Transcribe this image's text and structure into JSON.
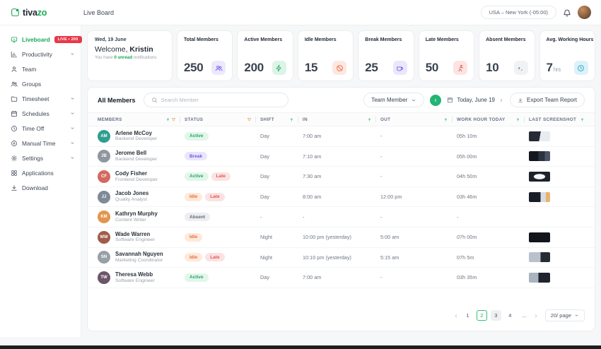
{
  "brand": {
    "name_primary": "tiva",
    "name_accent": "zo"
  },
  "header": {
    "title": "Live Board",
    "timezone": "USA – New York (-05:00)"
  },
  "sidebar": {
    "items": [
      {
        "label": "Liveboard",
        "icon": "monitor",
        "badge": "LIVE • 200",
        "state": "active"
      },
      {
        "label": "Productivity",
        "icon": "chart",
        "chevron": true
      },
      {
        "label": "Team",
        "icon": "user"
      },
      {
        "label": "Groups",
        "icon": "users"
      },
      {
        "label": "Timesheet",
        "icon": "folder",
        "chevron": true
      },
      {
        "label": "Schedules",
        "icon": "calendar",
        "chevron": true
      },
      {
        "label": "Time Off",
        "icon": "clock",
        "chevron": true
      },
      {
        "label": "Manual Time",
        "icon": "clock-plus",
        "chevron": true
      },
      {
        "label": "Settings",
        "icon": "gear",
        "chevron": true
      },
      {
        "label": "Applications",
        "icon": "apps"
      },
      {
        "label": "Download",
        "icon": "download"
      }
    ]
  },
  "welcome": {
    "date": "Wed, 19 June",
    "greeting_prefix": "Welcome,",
    "greeting_name": "Kristin",
    "note_before": "You have",
    "note_highlight": "0 unread",
    "note_after": "notifications"
  },
  "stats": [
    {
      "label": "Total Members",
      "value": "250",
      "icon": "users",
      "fg": "#7a5af8",
      "bg": "#ece9fd"
    },
    {
      "label": "Active Members",
      "value": "200",
      "icon": "zap",
      "fg": "#2bb673",
      "bg": "#def3e7"
    },
    {
      "label": "Idle Members",
      "value": "15",
      "icon": "ban",
      "fg": "#f26a4b",
      "bg": "#fde8e1"
    },
    {
      "label": "Break Members",
      "value": "25",
      "icon": "coffee",
      "fg": "#6d5ae6",
      "bg": "#eae7fc"
    },
    {
      "label": "Late Members",
      "value": "50",
      "icon": "run",
      "fg": "#e8554d",
      "bg": "#fce4e2"
    },
    {
      "label": "Absent Members",
      "value": "10",
      "icon": "zz",
      "fg": "#5f6b7a",
      "bg": "#f1f2f4"
    },
    {
      "label": "Avg. Working Hours",
      "value": "7",
      "unit": "hrs",
      "icon": "clock",
      "fg": "#2da7cf",
      "bg": "#ddf1f9"
    }
  ],
  "toolbar": {
    "members_filter": "All Members",
    "search_placeholder": "Search Member",
    "team_member": "Team Member",
    "date": "Today, June 19",
    "export": "Export Team Report"
  },
  "table": {
    "columns": [
      {
        "label": "MEMBERS",
        "icons": [
          "sort",
          "filter"
        ]
      },
      {
        "label": "STATUS",
        "icons": [
          "filter"
        ]
      },
      {
        "label": "SHIFT",
        "icons": [
          "sort"
        ]
      },
      {
        "label": "IN",
        "icons": [
          "sort"
        ]
      },
      {
        "label": "OUT",
        "icons": [
          "sort"
        ]
      },
      {
        "label": "WORK HOUR TODAY",
        "icons": [
          "sort"
        ]
      },
      {
        "label": "LAST SCREENSHOT",
        "icons": [
          "sort"
        ]
      }
    ],
    "rows": [
      {
        "name": "Arlene McCoy",
        "role": "Backend Developer",
        "initials": "AM",
        "avatar": "#2f9e8f",
        "statuses": [
          {
            "label": "Active",
            "type": "active"
          }
        ],
        "shift": "Day",
        "in": "7:00 am",
        "out": "-",
        "work": "05h 10m",
        "has_screenshot": true
      },
      {
        "name": "Jerome Bell",
        "role": "Backend Developer",
        "initials": "JB",
        "avatar": "#8f969e",
        "statuses": [
          {
            "label": "Break",
            "type": "break"
          }
        ],
        "shift": "Day",
        "in": "7:10 am",
        "out": "-",
        "work": "05h 00m",
        "has_screenshot": true
      },
      {
        "name": "Cody Fisher",
        "role": "Frontend Developer",
        "initials": "CF",
        "avatar": "#d4695f",
        "statuses": [
          {
            "label": "Active",
            "type": "active"
          },
          {
            "label": "Late",
            "type": "late"
          }
        ],
        "shift": "Day",
        "in": "7:30 am",
        "out": "-",
        "work": "04h 50m",
        "has_screenshot": true
      },
      {
        "name": "Jacob Jones",
        "role": "Quality Analyst",
        "initials": "JJ",
        "avatar": "#7e8a97",
        "statuses": [
          {
            "label": "Idle",
            "type": "idle"
          },
          {
            "label": "Late",
            "type": "late"
          }
        ],
        "shift": "Day",
        "in": "8:00 am",
        "out": "12:00 pm",
        "work": "03h 46m",
        "has_screenshot": true
      },
      {
        "name": "Kathryn Murphy",
        "role": "Content Writer",
        "initials": "KM",
        "avatar": "#e2954e",
        "statuses": [
          {
            "label": "Absent",
            "type": "absent"
          }
        ],
        "shift": "-",
        "in": "-",
        "out": "-",
        "work": "-",
        "has_screenshot": false
      },
      {
        "name": "Wade Warren",
        "role": "Software Engineer",
        "initials": "WW",
        "avatar": "#a05c4a",
        "statuses": [
          {
            "label": "Idle",
            "type": "idle"
          }
        ],
        "shift": "Night",
        "in": "10:00 pm (yesterday)",
        "out": "5:00 am",
        "work": "07h 00m",
        "has_screenshot": true
      },
      {
        "name": "Savannah Nguyen",
        "role": "Marketing Coordinator",
        "initials": "SN",
        "avatar": "#97a0a8",
        "statuses": [
          {
            "label": "Idle",
            "type": "idle"
          },
          {
            "label": "Late",
            "type": "late"
          }
        ],
        "shift": "Night",
        "in": "10:10 pm (yesterday)",
        "out": "5:15 am",
        "work": "07h 5m",
        "has_screenshot": true
      },
      {
        "name": "Theresa Webb",
        "role": "Software Engineer",
        "initials": "TW",
        "avatar": "#6b5568",
        "statuses": [
          {
            "label": "Active",
            "type": "active"
          }
        ],
        "shift": "Day",
        "in": "7:00 am",
        "out": "-",
        "work": "03h 35m",
        "has_screenshot": true
      }
    ]
  },
  "pagination": {
    "items": [
      {
        "label": "1"
      },
      {
        "label": "2",
        "state": "active"
      },
      {
        "label": "3",
        "state": "muted"
      },
      {
        "label": "4"
      },
      {
        "label": "..."
      }
    ],
    "page_size": "20/ page"
  },
  "colors": {
    "accent_green": "#18a957",
    "live_badge_red": "#e8374a",
    "status_active": "#27a567",
    "status_break": "#6d5ae6",
    "status_idle": "#ec6a3f",
    "status_late": "#e8544b",
    "status_absent": "#5f6b7a"
  }
}
